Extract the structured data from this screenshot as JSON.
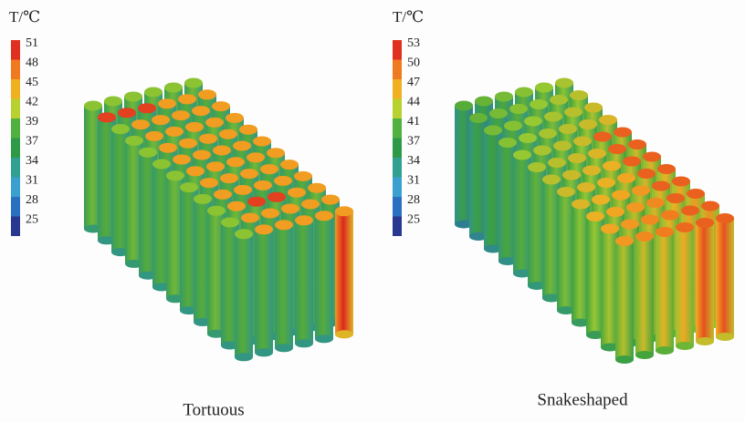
{
  "figures": [
    {
      "unit": "T/℃",
      "colorbar_ticks": [
        "51",
        "48",
        "45",
        "42",
        "39",
        "37",
        "34",
        "31",
        "28",
        "25"
      ],
      "caption": "Tortuous"
    },
    {
      "unit": "T/℃",
      "colorbar_ticks": [
        "53",
        "50",
        "47",
        "44",
        "41",
        "37",
        "34",
        "31",
        "28",
        "25"
      ],
      "caption": "Snakeshaped"
    }
  ]
}
